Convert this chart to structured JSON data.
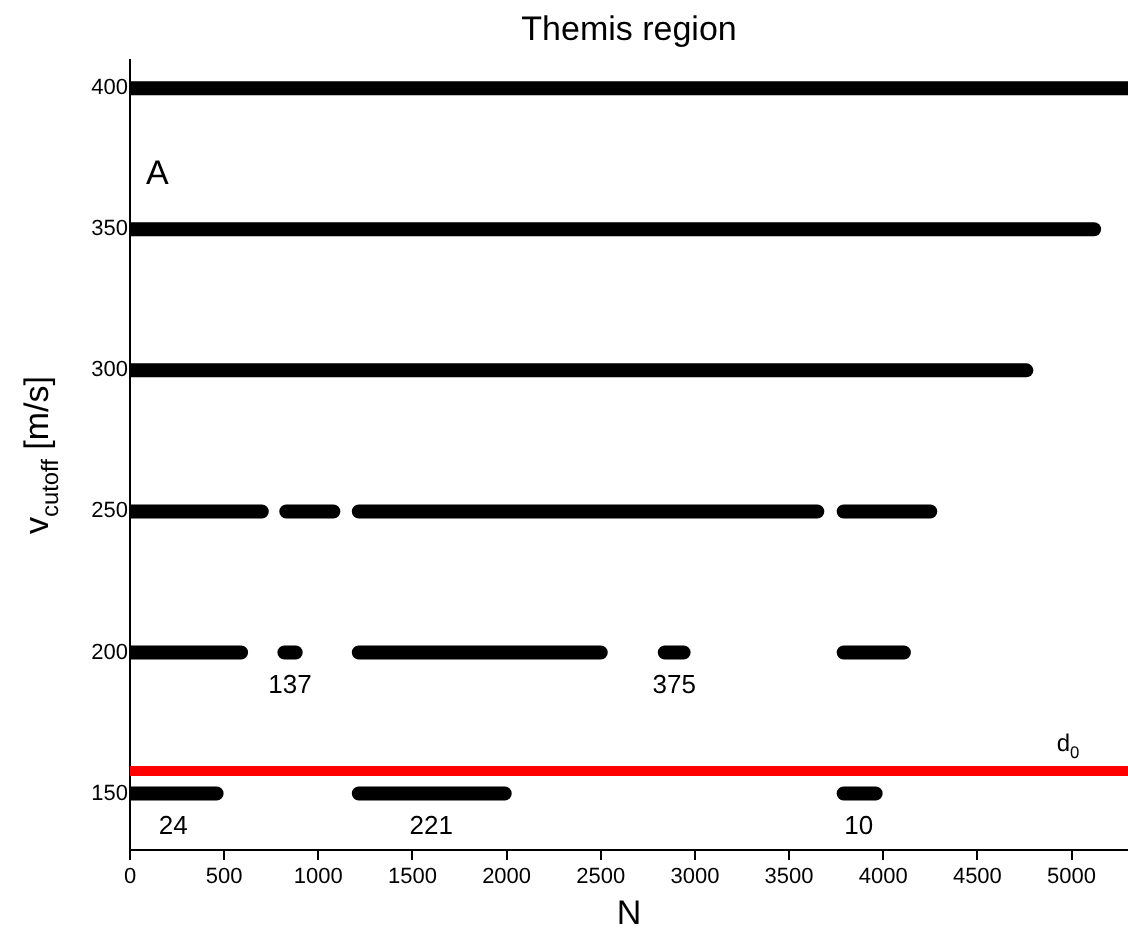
{
  "chart_data": {
    "type": "line",
    "title": "Themis region",
    "xlabel": "N",
    "ylabel": "v$_{cutoff}$ [m/s]",
    "xlim": [
      0,
      5300
    ],
    "xticks": [
      0,
      500,
      1000,
      1500,
      2000,
      2500,
      3000,
      3500,
      4000,
      4500,
      5000
    ],
    "ylim": [
      130,
      410
    ],
    "yticks": [
      150,
      200,
      250,
      300,
      350,
      400
    ],
    "grid": false,
    "legend": false,
    "marker": "none",
    "line_style": "solid",
    "series": [
      {
        "color": "#000000",
        "x": [
          0,
          5300
        ],
        "values": [
          400,
          400
        ]
      },
      {
        "color": "#000000",
        "x": [
          0,
          5120
        ],
        "values": [
          350,
          350
        ]
      },
      {
        "color": "#000000",
        "x": [
          0,
          4760
        ],
        "values": [
          300,
          300
        ]
      },
      {
        "color": "#000000",
        "x": [
          0,
          700,
          760,
          830,
          1080,
          1140,
          1215,
          3650,
          3720,
          3790,
          4250
        ],
        "values": [
          250,
          250,
          null,
          250,
          250,
          null,
          250,
          250,
          null,
          250,
          250
        ]
      },
      {
        "color": "#000000",
        "x": [
          0,
          590,
          700,
          820,
          880,
          1000,
          1215,
          2500,
          2650,
          2840,
          2940,
          3400,
          3790,
          4110
        ],
        "values": [
          200,
          200,
          null,
          200,
          200,
          null,
          200,
          200,
          null,
          200,
          200,
          null,
          200,
          200
        ]
      },
      {
        "color": "#000000",
        "x": [
          0,
          460,
          800,
          1215,
          1990,
          2900,
          3790,
          3960
        ],
        "values": [
          150,
          150,
          null,
          150,
          150,
          null,
          150,
          150
        ]
      }
    ],
    "ref_lines": [
      {
        "axis": "y",
        "value": 158,
        "label": "d$_{0}$",
        "color": "#ff0000"
      }
    ],
    "annotations": [
      "A",
      {
        "text": "137",
        "x": 850,
        "y": 200
      },
      {
        "text": "375",
        "x": 2890,
        "y": 200
      },
      {
        "text": "24",
        "x": 230,
        "y": 150
      },
      {
        "text": "221",
        "x": 1600,
        "y": 150
      },
      {
        "text": "10",
        "x": 3870,
        "y": 150
      }
    ]
  }
}
